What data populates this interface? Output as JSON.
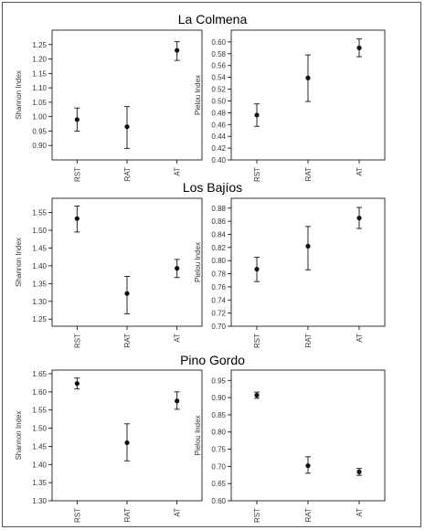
{
  "sites": [
    {
      "title": "La Colmena"
    },
    {
      "title": "Los Bajíos"
    },
    {
      "title": "Pino Gordo"
    }
  ],
  "colors": {
    "frame": "#555555",
    "axis": "#000000",
    "marker": "#111111",
    "text": "#333333"
  },
  "chart_data": [
    {
      "type": "scatter",
      "site": "La Colmena",
      "ylabel": "Shannon Index",
      "categories": [
        "RST",
        "RAT",
        "AT"
      ],
      "ylim": [
        0.85,
        1.3
      ],
      "yticks": [
        0.9,
        0.95,
        1.0,
        1.05,
        1.1,
        1.15,
        1.2,
        1.25
      ],
      "series": [
        {
          "values": [
            0.99,
            0.965,
            1.23
          ],
          "lower": [
            0.95,
            0.89,
            1.195
          ],
          "upper": [
            1.03,
            1.035,
            1.26
          ]
        }
      ]
    },
    {
      "type": "scatter",
      "site": "La Colmena",
      "ylabel": "Pielou Index",
      "categories": [
        "RST",
        "RAT",
        "AT"
      ],
      "ylim": [
        0.4,
        0.62
      ],
      "yticks": [
        0.4,
        0.42,
        0.44,
        0.46,
        0.48,
        0.5,
        0.52,
        0.54,
        0.56,
        0.58,
        0.6
      ],
      "series": [
        {
          "values": [
            0.476,
            0.539,
            0.59
          ],
          "lower": [
            0.457,
            0.499,
            0.575
          ],
          "upper": [
            0.495,
            0.578,
            0.605
          ]
        }
      ]
    },
    {
      "type": "scatter",
      "site": "Los Bajíos",
      "ylabel": "Shannon Index",
      "categories": [
        "RST",
        "RAT",
        "AT"
      ],
      "ylim": [
        1.23,
        1.59
      ],
      "yticks": [
        1.25,
        1.3,
        1.35,
        1.4,
        1.45,
        1.5,
        1.55
      ],
      "series": [
        {
          "values": [
            1.533,
            1.322,
            1.393
          ],
          "lower": [
            1.495,
            1.265,
            1.367
          ],
          "upper": [
            1.568,
            1.37,
            1.418
          ]
        }
      ]
    },
    {
      "type": "scatter",
      "site": "Los Bajíos",
      "ylabel": "Pielou Index",
      "categories": [
        "RST",
        "RAT",
        "AT"
      ],
      "ylim": [
        0.7,
        0.895
      ],
      "yticks": [
        0.7,
        0.72,
        0.74,
        0.76,
        0.78,
        0.8,
        0.82,
        0.84,
        0.86,
        0.88
      ],
      "series": [
        {
          "values": [
            0.787,
            0.822,
            0.865
          ],
          "lower": [
            0.768,
            0.786,
            0.849
          ],
          "upper": [
            0.805,
            0.852,
            0.881
          ]
        }
      ]
    },
    {
      "type": "scatter",
      "site": "Pino Gordo",
      "ylabel": "Shannon Index",
      "categories": [
        "RST",
        "RAT",
        "AT"
      ],
      "ylim": [
        1.3,
        1.66
      ],
      "yticks": [
        1.3,
        1.35,
        1.4,
        1.45,
        1.5,
        1.55,
        1.6,
        1.65
      ],
      "series": [
        {
          "values": [
            1.623,
            1.46,
            1.575
          ],
          "lower": [
            1.608,
            1.41,
            1.552
          ],
          "upper": [
            1.638,
            1.512,
            1.6
          ]
        }
      ]
    },
    {
      "type": "scatter",
      "site": "Pino Gordo",
      "ylabel": "Pielou Index",
      "categories": [
        "RST",
        "RAT",
        "AT"
      ],
      "ylim": [
        0.6,
        0.98
      ],
      "yticks": [
        0.6,
        0.65,
        0.7,
        0.75,
        0.8,
        0.85,
        0.9,
        0.95
      ],
      "series": [
        {
          "values": [
            0.907,
            0.702,
            0.684
          ],
          "lower": [
            0.898,
            0.68,
            0.674
          ],
          "upper": [
            0.916,
            0.728,
            0.694
          ]
        }
      ]
    }
  ]
}
